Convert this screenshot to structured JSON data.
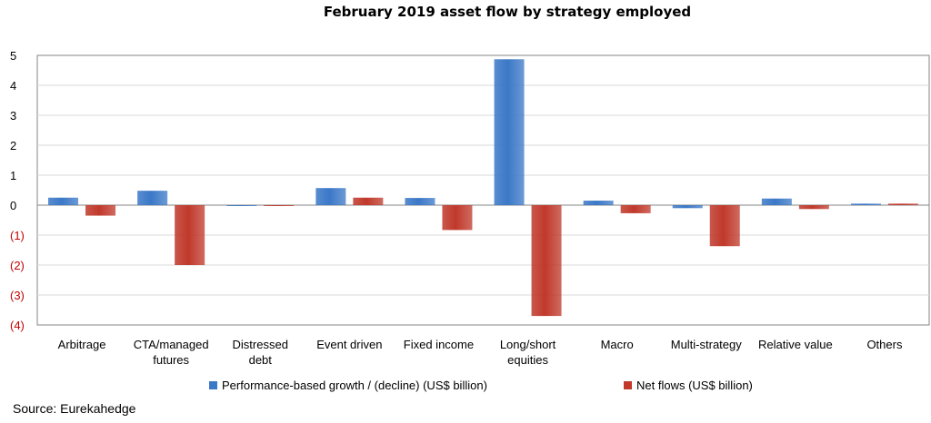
{
  "colors": {
    "performance": "#3b78c7",
    "netflows": "#c0392b",
    "axis": "#868686",
    "grid": "#d9d9d9",
    "negative_tick": "#c00000"
  },
  "chart_data": {
    "type": "bar",
    "title": "February 2019 asset flow by strategy employed",
    "categories": [
      [
        "Arbitrage"
      ],
      [
        "CTA/managed",
        "futures"
      ],
      [
        "Distressed",
        "debt"
      ],
      [
        "Event driven"
      ],
      [
        "Fixed income"
      ],
      [
        "Long/short",
        "equities"
      ],
      [
        "Macro"
      ],
      [
        "Multi-strategy"
      ],
      [
        "Relative value"
      ],
      [
        "Others"
      ]
    ],
    "series": [
      {
        "name": "Performance-based growth / (decline) (US$ billion)",
        "values": [
          0.25,
          0.48,
          0.0,
          0.57,
          0.24,
          4.87,
          0.15,
          -0.1,
          0.22,
          0.05
        ]
      },
      {
        "name": "Net flows (US$ billion)",
        "values": [
          -0.35,
          -2.0,
          0.0,
          0.25,
          -0.83,
          -3.7,
          -0.27,
          -1.37,
          -0.13,
          0.05
        ]
      }
    ],
    "ylim": [
      -4,
      5
    ],
    "yticks": [
      {
        "value": 5,
        "label": "5"
      },
      {
        "value": 4,
        "label": "4"
      },
      {
        "value": 3,
        "label": "3"
      },
      {
        "value": 2,
        "label": "2"
      },
      {
        "value": 1,
        "label": "1"
      },
      {
        "value": 0,
        "label": "0"
      },
      {
        "value": -1,
        "label": "(1)"
      },
      {
        "value": -2,
        "label": "(2)"
      },
      {
        "value": -3,
        "label": "(3)"
      },
      {
        "value": -4,
        "label": "(4)"
      }
    ],
    "grid": true,
    "legend": "bottom"
  },
  "source": "Source: Eurekahedge"
}
